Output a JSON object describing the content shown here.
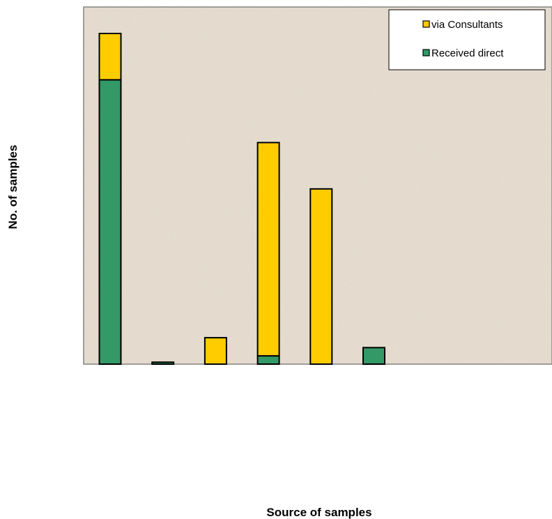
{
  "chart_data": {
    "type": "bar",
    "stacked": true,
    "xlabel": "Source of samples",
    "ylabel": "No. of samples",
    "categories": [
      "",
      "",
      "",
      "",
      "",
      "",
      "",
      "",
      ""
    ],
    "ylim": [
      0,
      100
    ],
    "grid": false,
    "legend_position": "top-right",
    "series": [
      {
        "name": "Received direct",
        "color": "#339966",
        "values": [
          86,
          0.6,
          0,
          2.5,
          0,
          5,
          0,
          0,
          0
        ]
      },
      {
        "name": "via Consultants",
        "color": "#FFCC00",
        "values": [
          14,
          0,
          8,
          64.5,
          53,
          0,
          0,
          0,
          0
        ]
      }
    ],
    "plot_background": "#E6DDD0"
  }
}
